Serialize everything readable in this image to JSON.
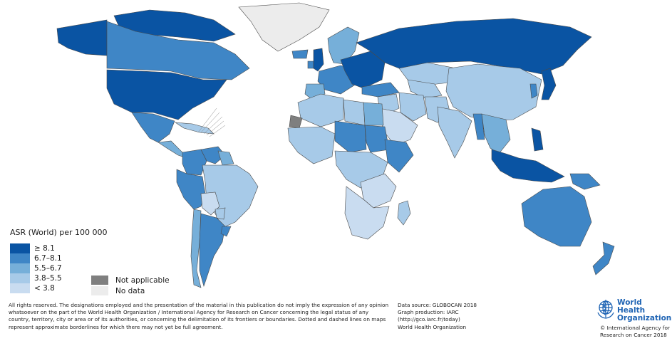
{
  "legend": {
    "title": "ASR (World) per 100 000",
    "classes": [
      {
        "label": "≥ 8.1",
        "color": "#0a54a3"
      },
      {
        "label": "6.7–8.1",
        "color": "#3f86c6"
      },
      {
        "label": "5.5–6.7",
        "color": "#76afd9"
      },
      {
        "label": "3.8–5.5",
        "color": "#a7cae8"
      },
      {
        "label": "< 3.8",
        "color": "#c9dcf0"
      }
    ],
    "extra": [
      {
        "label": "Not applicable",
        "color": "#7f7f7f"
      },
      {
        "label": "No data",
        "color": "#ececec"
      }
    ]
  },
  "colors": {
    "border": "#4a4a4a",
    "no_data": "#ececec"
  },
  "disclaimer": "All rights reserved. The designations employed and the presentation of the material in this publication do not imply the expression of any opinion whatsoever on the part of the World Health Organization / International Agency for Research on Cancer concerning the legal status of any country, territory, city or area or of its authorities, or concerning the delimitation of its frontiers or boundaries. Dotted and dashed lines on maps represent approximate borderlines for which there may not yet be full agreement.",
  "source": {
    "line1": "Data source: GLOBOCAN 2018",
    "line2": "Graph production: IARC",
    "line3": "(http://gco.iarc.fr/today)",
    "line4": "World Health Organization"
  },
  "logo": {
    "line1": "World Health",
    "line2": "Organization",
    "icon": "who-emblem-icon"
  },
  "copyright": "© International Agency for Research on Cancer 2018",
  "regions": [
    {
      "name": "Greenland",
      "class": "no-data"
    },
    {
      "name": "Canada",
      "class": "6.7–8.1"
    },
    {
      "name": "Alaska",
      "class": "≥ 8.1"
    },
    {
      "name": "Arctic islands",
      "class": "≥ 8.1"
    },
    {
      "name": "United States",
      "class": "≥ 8.1"
    },
    {
      "name": "Mexico",
      "class": "6.7–8.1"
    },
    {
      "name": "Central America",
      "class": "5.5–6.7"
    },
    {
      "name": "Caribbean",
      "class": "3.8–5.5"
    },
    {
      "name": "Colombia",
      "class": "6.7–8.1"
    },
    {
      "name": "Venezuela",
      "class": "6.7–8.1"
    },
    {
      "name": "Guianas",
      "class": "5.5–6.7"
    },
    {
      "name": "Ecuador/Peru",
      "class": "6.7–8.1"
    },
    {
      "name": "Brazil",
      "class": "3.8–5.5"
    },
    {
      "name": "Bolivia",
      "class": "< 3.8"
    },
    {
      "name": "Paraguay",
      "class": "3.8–5.5"
    },
    {
      "name": "Chile",
      "class": "5.5–6.7"
    },
    {
      "name": "Argentina",
      "class": "6.7–8.1"
    },
    {
      "name": "Uruguay",
      "class": "6.7–8.1"
    },
    {
      "name": "Iceland",
      "class": "6.7–8.1"
    },
    {
      "name": "United Kingdom",
      "class": "≥ 8.1"
    },
    {
      "name": "Ireland",
      "class": "6.7–8.1"
    },
    {
      "name": "Scandinavia",
      "class": "5.5–6.7"
    },
    {
      "name": "Western Europe",
      "class": "6.7–8.1"
    },
    {
      "name": "Iberia",
      "class": "5.5–6.7"
    },
    {
      "name": "Central/Eastern Europe",
      "class": "≥ 8.1"
    },
    {
      "name": "Russia",
      "class": "≥ 8.1"
    },
    {
      "name": "Kazakhstan",
      "class": "3.8–5.5"
    },
    {
      "name": "Central Asia",
      "class": "3.8–5.5"
    },
    {
      "name": "Mongolia/China",
      "class": "3.8–5.5"
    },
    {
      "name": "Japan",
      "class": "≥ 8.1"
    },
    {
      "name": "Korea",
      "class": "6.7–8.1"
    },
    {
      "name": "Turkey",
      "class": "6.7–8.1"
    },
    {
      "name": "Middle East",
      "class": "3.8–5.5"
    },
    {
      "name": "Iran",
      "class": "3.8–5.5"
    },
    {
      "name": "Arabian Peninsula",
      "class": "< 3.8"
    },
    {
      "name": "Afghanistan/Pakistan",
      "class": "3.8–5.5"
    },
    {
      "name": "India",
      "class": "3.8–5.5"
    },
    {
      "name": "Southeast Asia",
      "class": "5.5–6.7"
    },
    {
      "name": "Myanmar",
      "class": "6.7–8.1"
    },
    {
      "name": "Malaysia/Indonesia",
      "class": "≥ 8.1"
    },
    {
      "name": "Philippines",
      "class": "≥ 8.1"
    },
    {
      "name": "Papua New Guinea",
      "class": "6.7–8.1"
    },
    {
      "name": "Australia",
      "class": "6.7–8.1"
    },
    {
      "name": "New Zealand",
      "class": "6.7–8.1"
    },
    {
      "name": "Morocco/Algeria",
      "class": "3.8–5.5"
    },
    {
      "name": "Libya",
      "class": "3.8–5.5"
    },
    {
      "name": "Egypt",
      "class": "5.5–6.7"
    },
    {
      "name": "Western Sahara",
      "class": "not-applicable"
    },
    {
      "name": "Sahel/West Africa",
      "class": "3.8–5.5"
    },
    {
      "name": "Niger/Chad",
      "class": "6.7–8.1"
    },
    {
      "name": "Sudan",
      "class": "6.7–8.1"
    },
    {
      "name": "Ethiopia/Somalia",
      "class": "6.7–8.1"
    },
    {
      "name": "Central Africa",
      "class": "3.8–5.5"
    },
    {
      "name": "East Africa",
      "class": "< 3.8"
    },
    {
      "name": "Southern Africa",
      "class": "< 3.8"
    },
    {
      "name": "Madagascar",
      "class": "3.8–5.5"
    }
  ]
}
